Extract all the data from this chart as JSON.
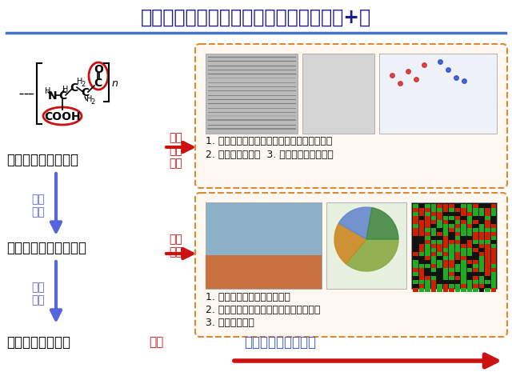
{
  "title": "聚谷氨酸促进植物生长机制（生物刺激素+）",
  "title_fontsize": 17,
  "title_color": "#1a1a8c",
  "bg_color": "#ffffff",
  "stage1_label": "第一阶段：大分子型",
  "stage2_label": "第二阶段：多肽小肽型",
  "stage3_label": "第三阶段：单体型",
  "stage_color": "#000000",
  "stage_fontsize": 12,
  "arrow_down_color": "#5566dd",
  "arrow_right_color": "#cc1111",
  "arrow_bottom_color": "#cc1111",
  "natural_degradation": "自然\n降解",
  "natural_degradation_color": "#5566dd",
  "label_baoshui": "保水",
  "label_zhenghe": "螯合\n改土",
  "label_shengwu": "生物\n刺激",
  "label_yingyang": "营养",
  "label_color_red": "#cc1111",
  "box1_text1": "1. 水包肥，肥水一体，减少水肥流失，抗干旱",
  "box1_text2": "2. 螯合微量元素；  3. 改善土壤微生物结构",
  "box2_text1": "1. 大幅提高植物光合作用效率",
  "box2_text2": "2. 上调植物抗逆相关基因，提高抗逆能力",
  "box2_text3": "3. 部分抗病效果",
  "box3_text": "作为氨基酸直接吸收",
  "box_border_color": "#dd8833",
  "box_fill_color": "#fff8f0",
  "text_black": "#111111",
  "text_blue": "#3355cc",
  "separator_color": "#4472c4",
  "circle_color": "#cc1111",
  "img1a_color": "#c8c8c8",
  "img1b_color": "#d8d8e8",
  "img1c_color": "#e0e8f8",
  "img2a_color": "#a0b8cc",
  "img2b_color": "#183018",
  "img2c_color": "#182818"
}
